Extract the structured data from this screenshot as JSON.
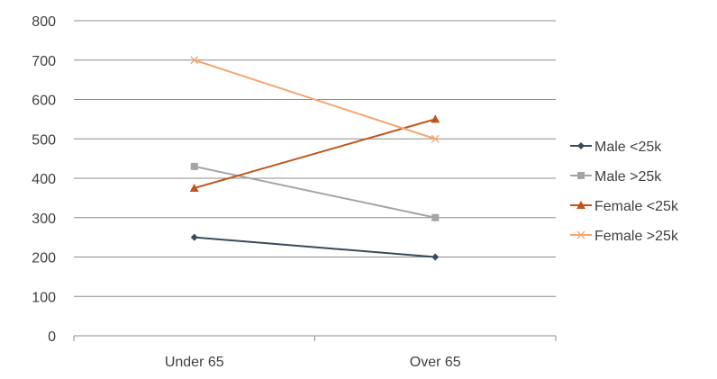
{
  "chart_data": {
    "type": "line",
    "categories": [
      "Under 65",
      "Over 65"
    ],
    "ylim": [
      0,
      800
    ],
    "yticks": [
      0,
      100,
      200,
      300,
      400,
      500,
      600,
      700,
      800
    ],
    "grid": true,
    "legend_position": "right",
    "series": [
      {
        "name": "Male <25k",
        "values": [
          250,
          200
        ],
        "color": "#3b4a5a",
        "marker": "diamond"
      },
      {
        "name": "Male >25k",
        "values": [
          430,
          300
        ],
        "color": "#a5a5a5",
        "marker": "square"
      },
      {
        "name": "Female <25k",
        "values": [
          375,
          550
        ],
        "color": "#c0541a",
        "marker": "triangle"
      },
      {
        "name": "Female >25k",
        "values": [
          700,
          500
        ],
        "color": "#f4a672",
        "marker": "x"
      }
    ]
  }
}
